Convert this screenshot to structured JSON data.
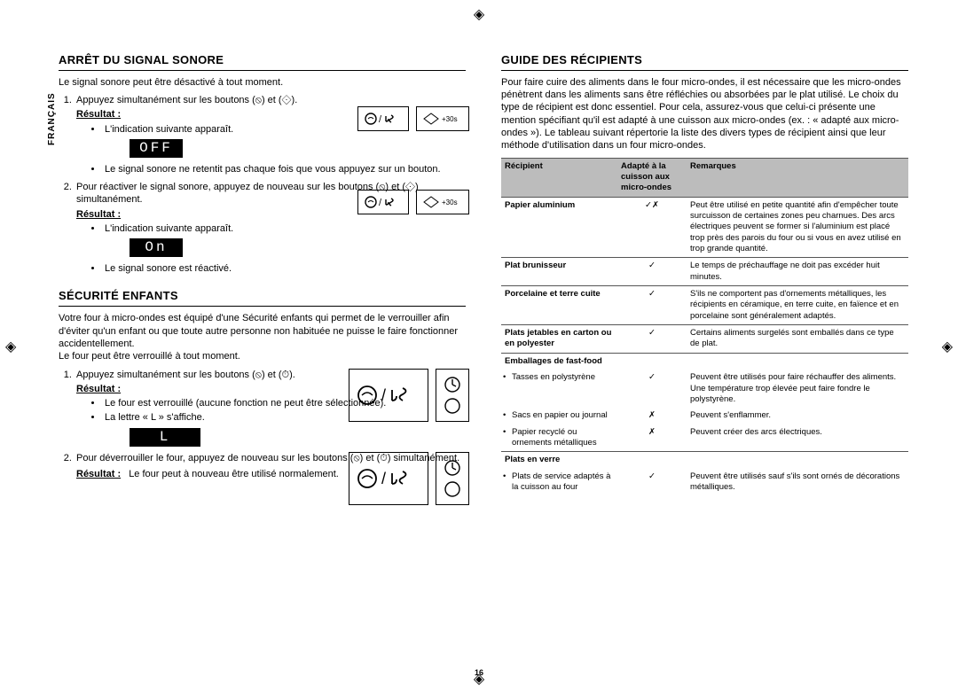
{
  "page_number": "16",
  "language_tab": "FRANÇAIS",
  "left": {
    "section1": {
      "title": "ARRÊT DU SIGNAL SONORE",
      "intro": "Le signal sonore peut être désactivé à tout moment.",
      "step1": "Appuyez simultanément sur les boutons (⦸) et (⟐).",
      "resultat_label": "Résultat :",
      "bullet1": "L'indication suivante apparaît.",
      "lcd1": "OFF",
      "bullet2": "Le signal sonore ne retentit pas chaque fois que vous appuyez sur un bouton.",
      "step2": "Pour réactiver le signal sonore, appuyez de nouveau sur les boutons (⦸) et (⟐) simultanément.",
      "bullet3": "L'indication suivante apparaît.",
      "lcd2": "On",
      "bullet4": "Le signal sonore est réactivé.",
      "icon_label": "+30s"
    },
    "section2": {
      "title": "SÉCURITÉ ENFANTS",
      "intro": "Votre four à micro-ondes est équipé d'une Sécurité enfants qui permet de le verrouiller afin d'éviter qu'un enfant ou que toute autre personne non habituée ne puisse le faire fonctionner accidentellement.\nLe four peut être verrouillé à tout moment.",
      "step1": "Appuyez simultanément sur les boutons (⦸) et (⏱).",
      "resultat_label": "Résultat :",
      "bullet1": "Le four est verrouillé (aucune fonction ne peut être sélectionnée).",
      "bullet2": "La lettre « L » s'affiche.",
      "lcd1": "L",
      "step2": "Pour déverrouiller le four, appuyez de nouveau sur les boutons (⦸) et (⏱) simultanément.",
      "result_inline": "Le four peut à nouveau être utilisé normalement."
    }
  },
  "right": {
    "title": "GUIDE DES RÉCIPIENTS",
    "intro": "Pour faire cuire des aliments dans le four micro-ondes, il est nécessaire que les micro-ondes pénètrent dans les aliments sans être réfléchies ou absorbées par le plat utilisé. Le choix du type de récipient est donc essentiel. Pour cela, assurez-vous que celui-ci présente une mention spécifiant qu'il est adapté à une cuisson aux micro-ondes (ex. : « adapté aux micro-ondes »). Le tableau suivant répertorie la liste des divers types de récipient ainsi que leur méthode d'utilisation dans un four micro-ondes.",
    "table": {
      "header": [
        "Récipient",
        "Adapté à la cuisson aux micro-ondes",
        "Remarques"
      ],
      "rows": [
        {
          "c1": "Papier aluminium",
          "c2": "✓✗",
          "c3": "Peut être utilisé en petite quantité afin d'empêcher toute surcuisson de certaines zones peu charnues. Des arcs électriques peuvent se former si l'aluminium est placé trop près des parois du four ou si vous en avez utilisé en trop grande quantité.",
          "bold": true
        },
        {
          "c1": "Plat brunisseur",
          "c2": "✓",
          "c3": "Le temps de préchauffage ne doit pas excéder huit minutes.",
          "bold": true
        },
        {
          "c1": "Porcelaine et terre cuite",
          "c2": "✓",
          "c3": "S'ils ne comportent pas d'ornements métalliques, les récipients en céramique, en terre cuite, en faïence et en porcelaine sont généralement adaptés.",
          "bold": true
        },
        {
          "c1": "Plats jetables en carton ou en polyester",
          "c2": "✓",
          "c3": "Certains aliments surgelés sont emballés dans ce type de plat.",
          "bold": true
        },
        {
          "c1": "Emballages de fast-food",
          "c2": "",
          "c3": "",
          "bold": true,
          "noborder_below": true
        },
        {
          "c1": "Tasses en polystyrène",
          "c2": "✓",
          "c3": "Peuvent être utilisés pour faire réchauffer des aliments. Une température trop élevée peut faire fondre le polystyrène.",
          "sub": true
        },
        {
          "c1": "Sacs en papier ou journal",
          "c2": "✗",
          "c3": "Peuvent s'enflammer.",
          "sub": true
        },
        {
          "c1": "Papier recyclé ou ornements métalliques",
          "c2": "✗",
          "c3": "Peuvent créer des arcs électriques.",
          "sub": true
        },
        {
          "c1": "Plats en verre",
          "c2": "",
          "c3": "",
          "bold": true,
          "noborder_below": true
        },
        {
          "c1": "Plats de service adaptés à la cuisson au four",
          "c2": "✓",
          "c3": "Peuvent être utilisés sauf s'ils sont ornés de décorations métalliques.",
          "sub": true
        }
      ]
    }
  }
}
